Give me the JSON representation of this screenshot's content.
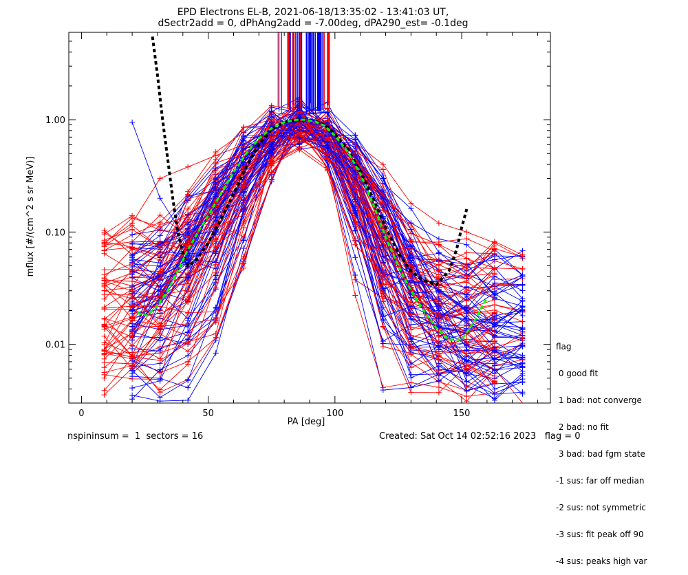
{
  "title_line1": "EPD Electrons EL-B, 2021-06-18/13:35:02 - 13:41:03 UT,",
  "title_line2": "dSectr2add = 0, dPhAng2add = -7.00deg, dPA290_est=  -0.1deg",
  "footer_left": "nspininsum =  1  sectors = 16",
  "footer_right": "Created: Sat Oct 14 02:52:16 2023   flag = 0",
  "legend": {
    "title": "flag",
    "items": [
      " 0 good fit",
      " 1 bad: not converge",
      " 2 bad: no fit",
      " 3 bad: bad fgm state",
      "-1 sus: far off median",
      "-2 sus: not symmetric",
      "-3 sus: fit peak off 90",
      "-4 sus: peaks high var"
    ]
  },
  "colors": {
    "red_series": "#ff0000",
    "blue_series": "#0000ff",
    "fit_black": "#000000",
    "fit_green": "#00ff00"
  },
  "chart_data": {
    "type": "line",
    "title": "EPD Electrons EL-B, 2021-06-18/13:35:02 - 13:41:03 UT, dSectr2add = 0, dPhAng2add = -7.00deg, dPA290_est=  -0.1deg",
    "xlabel": "PA [deg]",
    "ylabel": "mflux [#/(cm^2 s sr MeV)]",
    "xlim": [
      -5,
      185
    ],
    "ylim": [
      0.003,
      6
    ],
    "yscale": "log",
    "xticks": [
      0,
      50,
      100,
      150
    ],
    "xtick_labels": [
      "0",
      "50",
      "100",
      "150"
    ],
    "yticks": [
      0.01,
      0.1,
      1.0
    ],
    "ytick_labels": [
      "0.01",
      "0.10",
      "1.00"
    ],
    "pa_bins": [
      9,
      20,
      31,
      42,
      53,
      64,
      75,
      86,
      97,
      108,
      119,
      130,
      141,
      152,
      163,
      174
    ],
    "red_series_sample": [
      {
        "name": "red",
        "x": [
          9,
          20,
          31,
          42,
          53,
          64,
          75,
          86,
          97,
          108,
          119,
          130,
          141,
          152,
          163
        ],
        "y": [
          0.08,
          0.12,
          0.3,
          0.38,
          0.48,
          0.6,
          0.82,
          0.95,
          0.92,
          0.62,
          0.4,
          0.18,
          0.12,
          0.1,
          0.08
        ]
      },
      {
        "name": "red",
        "x": [
          9,
          20,
          31,
          42,
          53,
          64,
          75,
          86,
          97,
          108,
          119,
          130,
          141,
          152,
          163
        ],
        "y": [
          0.005,
          0.012,
          0.02,
          0.05,
          0.15,
          0.35,
          0.7,
          0.98,
          0.85,
          0.4,
          0.12,
          0.03,
          0.012,
          0.008,
          0.006
        ]
      }
    ],
    "blue_series_sample": [
      {
        "name": "blue",
        "x": [
          20,
          31,
          42,
          53,
          64,
          75,
          86,
          97,
          108,
          119,
          130,
          141,
          152,
          163,
          174
        ],
        "y": [
          0.95,
          0.2,
          0.08,
          0.3,
          0.5,
          0.8,
          1.0,
          0.95,
          0.6,
          0.3,
          0.05,
          0.03,
          0.02,
          0.015,
          0.012
        ]
      },
      {
        "name": "blue",
        "x": [
          20,
          31,
          42,
          53,
          64,
          75,
          86,
          97,
          108,
          119,
          130,
          141,
          152,
          163,
          174
        ],
        "y": [
          0.02,
          0.04,
          0.1,
          0.25,
          0.55,
          0.85,
          1.05,
          0.9,
          0.55,
          0.2,
          0.05,
          0.02,
          0.01,
          0.009,
          0.008
        ]
      }
    ],
    "fit_black": {
      "x": [
        28,
        30,
        32,
        34,
        36,
        38,
        40,
        42,
        45,
        50,
        55,
        60,
        65,
        70,
        75,
        80,
        85,
        88,
        92,
        96,
        100,
        105,
        110,
        115,
        120,
        125,
        130,
        135,
        140,
        145,
        148,
        150,
        152
      ],
      "y": [
        5.5,
        2.5,
        1.0,
        0.45,
        0.2,
        0.1,
        0.065,
        0.05,
        0.055,
        0.08,
        0.13,
        0.22,
        0.38,
        0.6,
        0.82,
        0.95,
        1.0,
        1.0,
        0.98,
        0.9,
        0.75,
        0.55,
        0.35,
        0.2,
        0.11,
        0.065,
        0.045,
        0.037,
        0.034,
        0.045,
        0.07,
        0.11,
        0.16
      ]
    },
    "fit_green": {
      "x": [
        22,
        26,
        30,
        34,
        38,
        42,
        46,
        50,
        55,
        60,
        65,
        70,
        75,
        80,
        85,
        88,
        92,
        96,
        100,
        105,
        110,
        115,
        120,
        125,
        130,
        135,
        140,
        145,
        150,
        155,
        160
      ],
      "y": [
        0.019,
        0.018,
        0.022,
        0.03,
        0.045,
        0.07,
        0.1,
        0.14,
        0.22,
        0.34,
        0.5,
        0.68,
        0.84,
        0.95,
        1.0,
        1.0,
        0.97,
        0.88,
        0.72,
        0.52,
        0.33,
        0.18,
        0.09,
        0.05,
        0.03,
        0.02,
        0.014,
        0.011,
        0.011,
        0.016,
        0.026
      ]
    }
  }
}
